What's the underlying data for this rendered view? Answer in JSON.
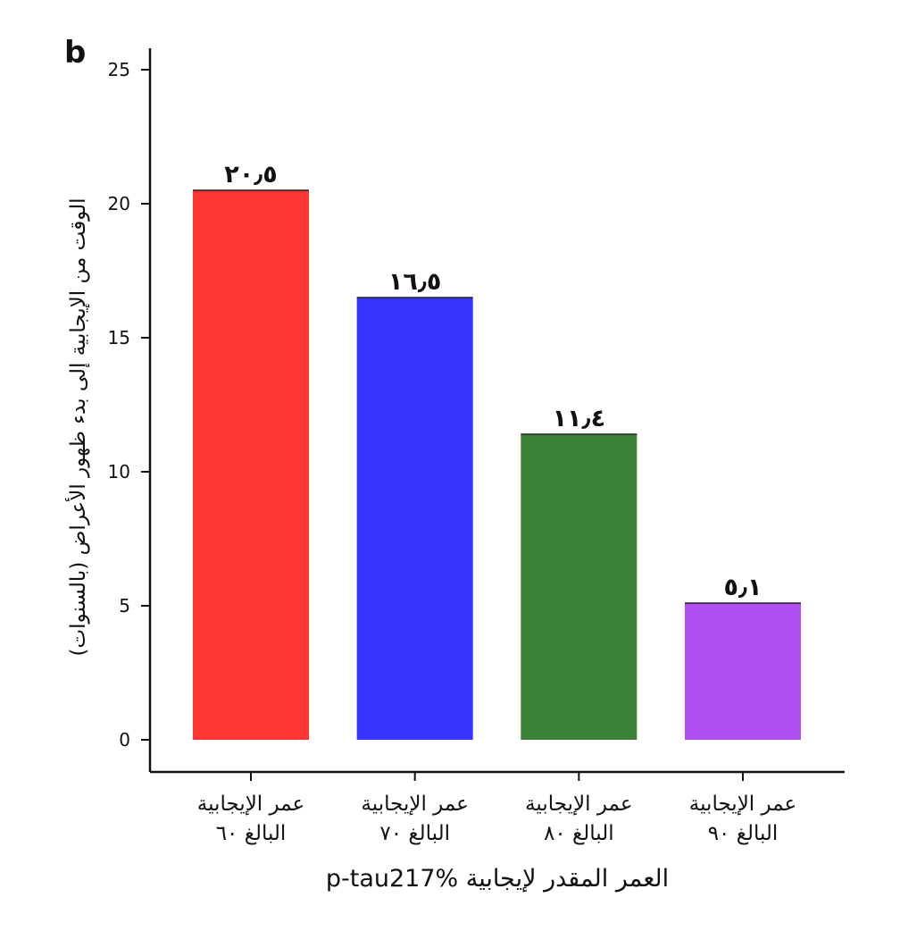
{
  "panel_label": "b",
  "chart_data": {
    "type": "bar",
    "categories": [
      [
        "عمر الإيجابية",
        "البالغ ٦٠"
      ],
      [
        "عمر الإيجابية",
        "البالغ ٧٠"
      ],
      [
        "عمر الإيجابية",
        "البالغ ٨٠"
      ],
      [
        "عمر الإيجابية",
        "البالغ ٩٠"
      ]
    ],
    "values": [
      20.5,
      16.5,
      11.4,
      5.1
    ],
    "data_labels": [
      "٢٠٫٥",
      "١٦٫٥",
      "١١٫٤",
      "٥٫١"
    ],
    "colors": [
      "#ff3535",
      "#3535ff",
      "#3a8035",
      "#b04ef0"
    ],
    "xlabel": "العمر المقدر لإيجابية p-tau217%",
    "ylabel": "الوقت من الإيجابية إلى بدء ظهور الأعراض (بالسنوات)",
    "ylim": [
      0,
      25
    ],
    "yticks": [
      0,
      5,
      10,
      15,
      20,
      25
    ],
    "grid": false,
    "legend": "none"
  }
}
